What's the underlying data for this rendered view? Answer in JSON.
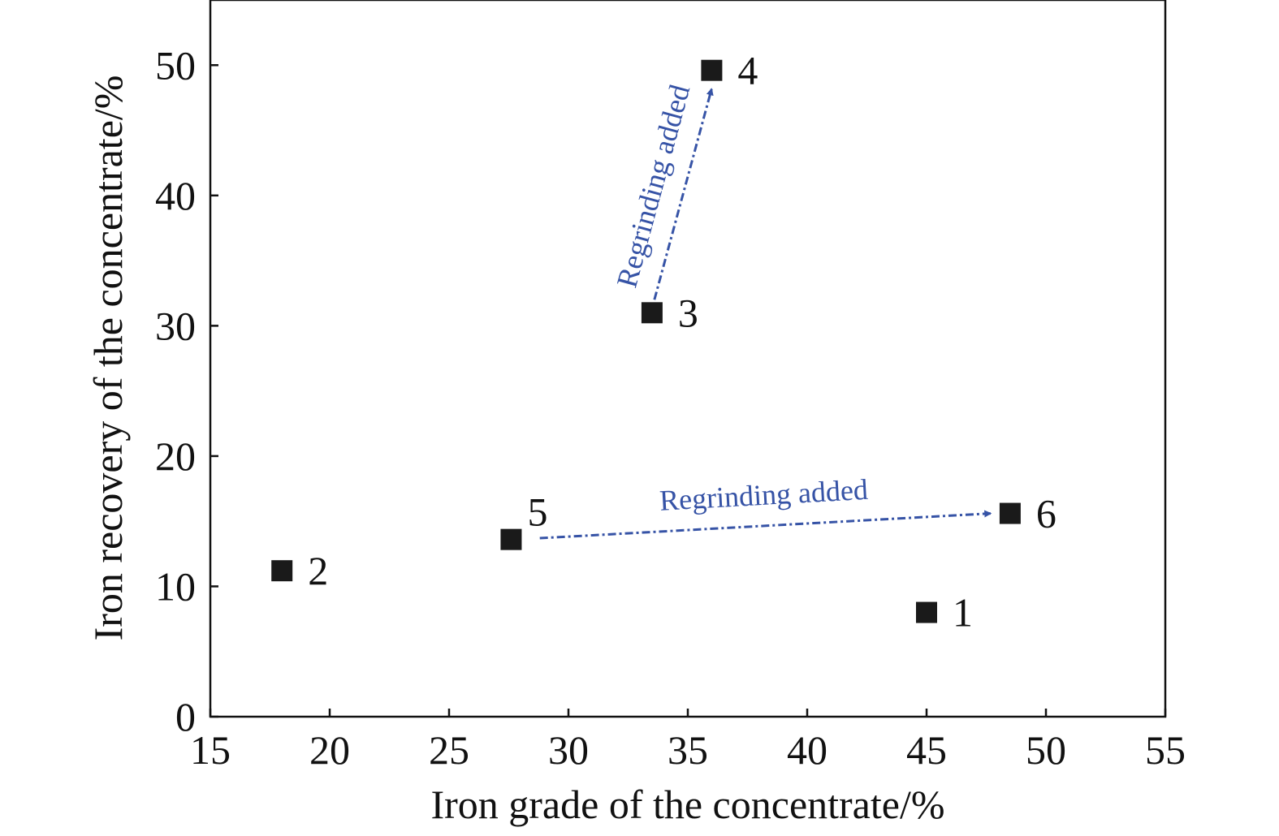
{
  "chart_data": {
    "type": "scatter",
    "xlabel": "Iron grade of the concentrate/%",
    "ylabel": "Iron recovery of the concentrate/%",
    "xlim": [
      15,
      55
    ],
    "ylim": [
      0,
      55
    ],
    "xticks": [
      15,
      20,
      25,
      30,
      35,
      40,
      45,
      50,
      55
    ],
    "yticks": [
      0,
      10,
      20,
      30,
      40,
      50
    ],
    "grid": false,
    "marker_color": "#1a1a1a",
    "annotation_color": "#3653a6",
    "points": [
      {
        "label": "1",
        "x": 45.0,
        "y": 8.0
      },
      {
        "label": "2",
        "x": 18.0,
        "y": 11.2
      },
      {
        "label": "3",
        "x": 33.5,
        "y": 31.0
      },
      {
        "label": "4",
        "x": 36.0,
        "y": 49.6
      },
      {
        "label": "5",
        "x": 27.6,
        "y": 13.6
      },
      {
        "label": "6",
        "x": 48.5,
        "y": 15.6
      }
    ],
    "annotations": [
      {
        "text": "Regrinding added",
        "from": [
          33.6,
          32.0
        ],
        "to": [
          36.0,
          48.2
        ]
      },
      {
        "text": "Regrinding added",
        "from": [
          28.8,
          13.7
        ],
        "to": [
          47.7,
          15.6
        ]
      }
    ]
  }
}
